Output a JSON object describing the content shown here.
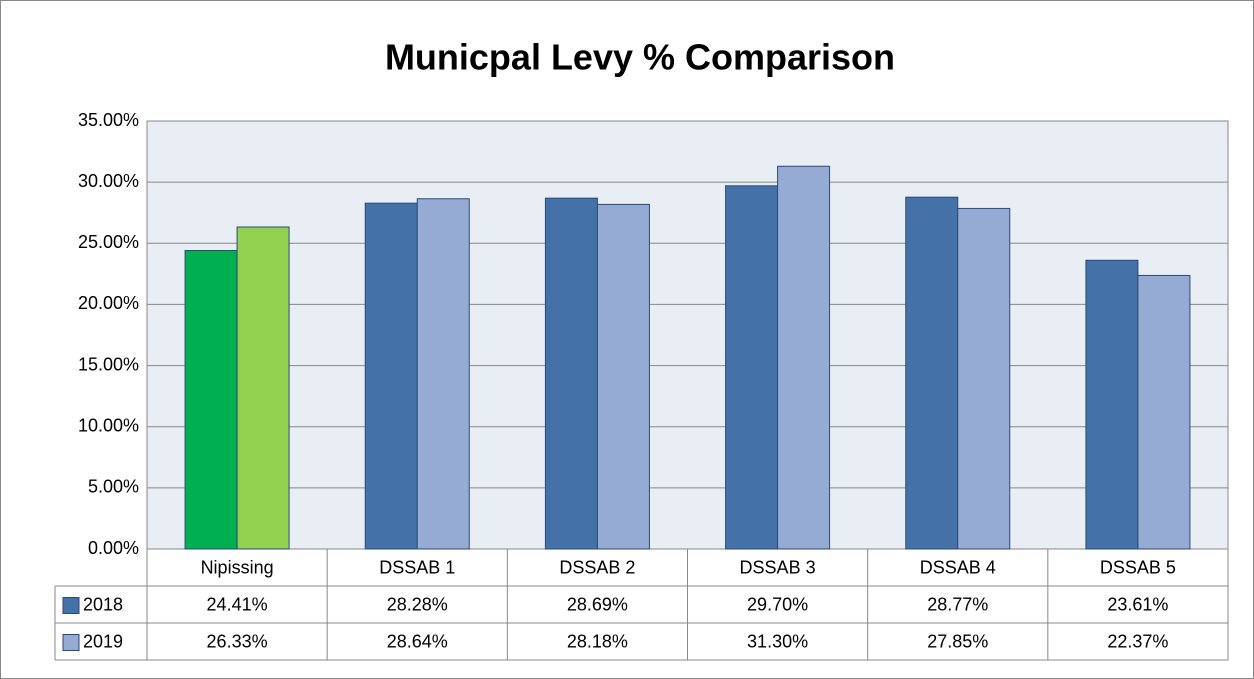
{
  "chart_data": {
    "type": "bar",
    "title": "Municpal Levy % Comparison",
    "categories": [
      "Nipissing",
      "DSSAB 1",
      "DSSAB 2",
      "DSSAB 3",
      "DSSAB 4",
      "DSSAB 5"
    ],
    "series": [
      {
        "name": "2018",
        "color": "#4472a8",
        "colors": [
          "#00b050",
          "#4472a8",
          "#4472a8",
          "#4472a8",
          "#4472a8",
          "#4472a8"
        ],
        "values": [
          24.41,
          28.28,
          28.69,
          29.7,
          28.77,
          23.61
        ],
        "value_labels": [
          "24.41%",
          "28.28%",
          "28.69%",
          "29.70%",
          "28.77%",
          "23.61%"
        ]
      },
      {
        "name": "2019",
        "color": "#95abd4",
        "colors": [
          "#92d050",
          "#95abd4",
          "#95abd4",
          "#95abd4",
          "#95abd4",
          "#95abd4"
        ],
        "values": [
          26.33,
          28.64,
          28.18,
          31.3,
          27.85,
          22.37
        ],
        "value_labels": [
          "26.33%",
          "28.64%",
          "28.18%",
          "31.30%",
          "27.85%",
          "22.37%"
        ]
      }
    ],
    "ylim": [
      0,
      35
    ],
    "yticks": [
      {
        "value": 0,
        "label": "0.00%"
      },
      {
        "value": 5,
        "label": "5.00%"
      },
      {
        "value": 10,
        "label": "10.00%"
      },
      {
        "value": 15,
        "label": "15.00%"
      },
      {
        "value": 20,
        "label": "20.00%"
      },
      {
        "value": 25,
        "label": "25.00%"
      },
      {
        "value": 30,
        "label": "30.00%"
      },
      {
        "value": 35,
        "label": "35.00%"
      }
    ],
    "grid": true
  }
}
